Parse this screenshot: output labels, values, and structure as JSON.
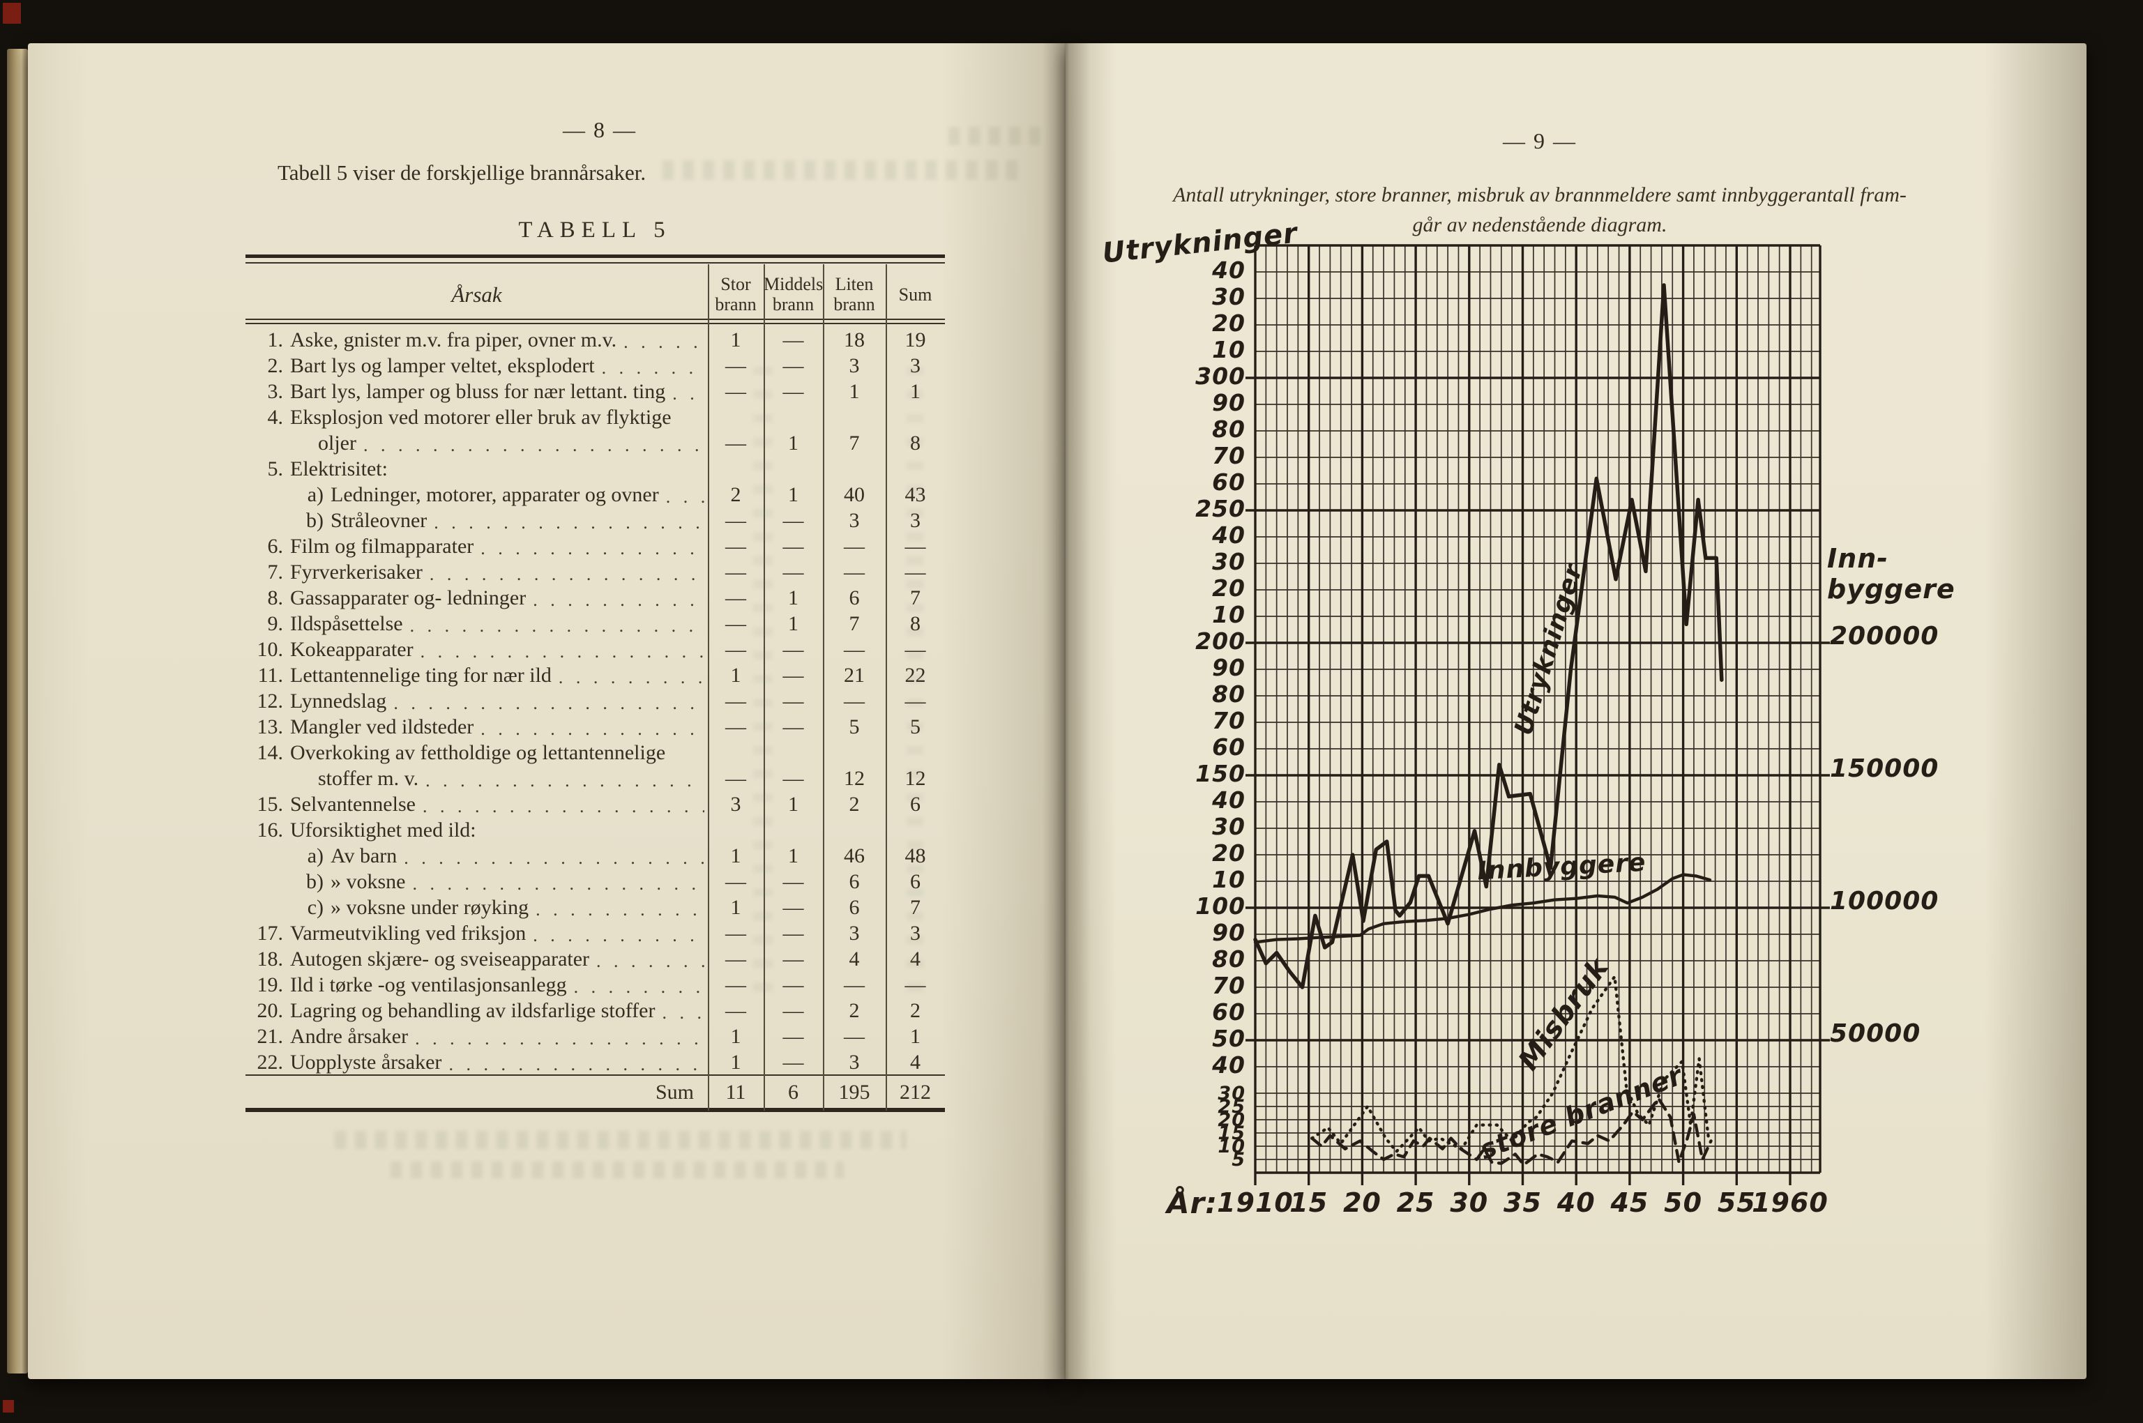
{
  "left_page": {
    "page_number": "— 8 —",
    "intro": "Tabell 5 viser de forskjellige brannårsaker.",
    "table_title": "TABELL 5",
    "table": {
      "col_headers": [
        {
          "l1": "Årsak",
          "l2": ""
        },
        {
          "l1": "Stor",
          "l2": "brann"
        },
        {
          "l1": "Middels",
          "l2": "brann"
        },
        {
          "l1": "Liten",
          "l2": "brann"
        },
        {
          "l1": "Sum",
          "l2": ""
        }
      ],
      "rows": [
        {
          "n": "1.",
          "t": "Aske, gnister m.v. fra piper, ovner m.v.",
          "leader": true,
          "v": [
            "1",
            "—",
            "18",
            "19"
          ]
        },
        {
          "n": "2.",
          "t": "Bart lys og lamper veltet, eksplodert",
          "leader": true,
          "v": [
            "—",
            "—",
            "3",
            "3"
          ]
        },
        {
          "n": "3.",
          "t": "Bart lys, lamper og bluss for nær lettant. ting",
          "leader": true,
          "v": [
            "—",
            "—",
            "1",
            "1"
          ]
        },
        {
          "n": "4.",
          "t": "Eksplosjon ved motorer eller bruk av flyktige",
          "leader": false,
          "v": null
        },
        {
          "n": "",
          "t": "oljer",
          "cont": true,
          "leader": true,
          "v": [
            "—",
            "1",
            "7",
            "8"
          ]
        },
        {
          "n": "5.",
          "t": "Elektrisitet:",
          "leader": false,
          "v": null
        },
        {
          "n": "a)",
          "t": "Ledninger, motorer, apparater og ovner",
          "sub": true,
          "leader": true,
          "v": [
            "2",
            "1",
            "40",
            "43"
          ]
        },
        {
          "n": "b)",
          "t": "Stråleovner",
          "sub": true,
          "leader": true,
          "v": [
            "—",
            "—",
            "3",
            "3"
          ]
        },
        {
          "n": "6.",
          "t": "Film og filmapparater",
          "leader": true,
          "v": [
            "—",
            "—",
            "—",
            "—"
          ]
        },
        {
          "n": "7.",
          "t": "Fyrverkerisaker",
          "leader": true,
          "v": [
            "—",
            "—",
            "—",
            "—"
          ]
        },
        {
          "n": "8.",
          "t": "Gassapparater og- ledninger",
          "leader": true,
          "v": [
            "—",
            "1",
            "6",
            "7"
          ]
        },
        {
          "n": "9.",
          "t": "Ildspåsettelse",
          "leader": true,
          "v": [
            "—",
            "1",
            "7",
            "8"
          ]
        },
        {
          "n": "10.",
          "t": "Kokeapparater",
          "leader": true,
          "v": [
            "—",
            "—",
            "—",
            "—"
          ]
        },
        {
          "n": "11.",
          "t": "Lettantennelige ting for nær ild",
          "leader": true,
          "v": [
            "1",
            "—",
            "21",
            "22"
          ]
        },
        {
          "n": "12.",
          "t": "Lynnedslag",
          "leader": true,
          "v": [
            "—",
            "—",
            "—",
            "—"
          ]
        },
        {
          "n": "13.",
          "t": "Mangler ved ildsteder",
          "leader": true,
          "v": [
            "—",
            "—",
            "5",
            "5"
          ]
        },
        {
          "n": "14.",
          "t": "Overkoking av fettholdige og lettantennelige",
          "leader": false,
          "v": null
        },
        {
          "n": "",
          "t": "stoffer m. v.",
          "cont": true,
          "leader": true,
          "v": [
            "—",
            "—",
            "12",
            "12"
          ]
        },
        {
          "n": "15.",
          "t": "Selvantennelse",
          "leader": true,
          "v": [
            "3",
            "1",
            "2",
            "6"
          ]
        },
        {
          "n": "16.",
          "t": "Uforsiktighet med ild:",
          "leader": false,
          "v": null
        },
        {
          "n": "a)",
          "t": "Av barn",
          "sub": true,
          "leader": true,
          "v": [
            "1",
            "1",
            "46",
            "48"
          ]
        },
        {
          "n": "b)",
          "t": "»  voksne",
          "sub": true,
          "leader": true,
          "v": [
            "—",
            "—",
            "6",
            "6"
          ]
        },
        {
          "n": "c)",
          "t": "»  voksne under røyking",
          "sub": true,
          "leader": true,
          "v": [
            "1",
            "—",
            "6",
            "7"
          ]
        },
        {
          "n": "17.",
          "t": "Varmeutvikling ved friksjon",
          "leader": true,
          "v": [
            "—",
            "—",
            "3",
            "3"
          ]
        },
        {
          "n": "18.",
          "t": "Autogen skjære- og sveiseapparater",
          "leader": true,
          "v": [
            "—",
            "—",
            "4",
            "4"
          ]
        },
        {
          "n": "19.",
          "t": "Ild i tørke -og ventilasjonsanlegg",
          "leader": true,
          "v": [
            "—",
            "—",
            "—",
            "—"
          ]
        },
        {
          "n": "20.",
          "t": "Lagring og behandling av ildsfarlige stoffer",
          "leader": true,
          "v": [
            "—",
            "—",
            "2",
            "2"
          ]
        },
        {
          "n": "21.",
          "t": "Andre årsaker",
          "leader": true,
          "v": [
            "1",
            "—",
            "—",
            "1"
          ]
        },
        {
          "n": "22.",
          "t": "Uopplyste årsaker",
          "leader": true,
          "v": [
            "1",
            "—",
            "3",
            "4"
          ]
        }
      ],
      "sum_row": {
        "label": "Sum",
        "v": [
          "11",
          "6",
          "195",
          "212"
        ]
      }
    }
  },
  "right_page": {
    "page_number": "— 9 —",
    "caption_line1": "Antall utrykninger, store branner, misbruk av brannmeldere samt innbyggerantall fram-",
    "caption_line2": "går av nedenstående diagram."
  },
  "chart_data": {
    "type": "line",
    "title": "Antall utrykninger, store branner, misbruk av brannmeldere samt innbyggerantall 1910–1960",
    "x_axis": {
      "label": "År:",
      "tick_years": [
        1910,
        1915,
        1920,
        1925,
        1930,
        1935,
        1940,
        1945,
        1950,
        1955,
        1960
      ],
      "tick_texts": [
        "1910",
        "15",
        "20",
        "25",
        "30",
        "35",
        "40",
        "45",
        "50",
        "55",
        "1960"
      ],
      "range": [
        1910,
        1963
      ]
    },
    "y_axis_left": {
      "label": "Utrykninger",
      "range": [
        0,
        350
      ],
      "ticks": [
        [
          340,
          "40"
        ],
        [
          330,
          "30"
        ],
        [
          320,
          "20"
        ],
        [
          310,
          "10"
        ],
        [
          300,
          "300"
        ],
        [
          290,
          "90"
        ],
        [
          280,
          "80"
        ],
        [
          270,
          "70"
        ],
        [
          260,
          "60"
        ],
        [
          250,
          "250"
        ],
        [
          240,
          "40"
        ],
        [
          230,
          "30"
        ],
        [
          220,
          "20"
        ],
        [
          210,
          "10"
        ],
        [
          200,
          "200"
        ],
        [
          190,
          "90"
        ],
        [
          180,
          "80"
        ],
        [
          170,
          "70"
        ],
        [
          160,
          "60"
        ],
        [
          150,
          "150"
        ],
        [
          140,
          "40"
        ],
        [
          130,
          "30"
        ],
        [
          120,
          "20"
        ],
        [
          110,
          "10"
        ],
        [
          100,
          "100"
        ],
        [
          90,
          "90"
        ],
        [
          80,
          "80"
        ],
        [
          70,
          "70"
        ],
        [
          60,
          "60"
        ],
        [
          50,
          "50"
        ],
        [
          40,
          "40"
        ],
        [
          30,
          "30"
        ],
        [
          25,
          "25"
        ],
        [
          20,
          "20"
        ],
        [
          15,
          "15"
        ],
        [
          10,
          "10"
        ],
        [
          5,
          "5"
        ]
      ]
    },
    "y_axis_right": {
      "label_line1": "Inn-",
      "label_line2": "byggere",
      "ticks": [
        [
          200000,
          "200000"
        ],
        [
          150000,
          "150000"
        ],
        [
          100000,
          "100000"
        ],
        [
          50000,
          "50000"
        ]
      ]
    },
    "grid": {
      "on": true,
      "minor_step": 10,
      "major_step": 50,
      "extra_fine_below": 30,
      "minor_step_below": 5
    },
    "series": [
      {
        "name": "Utrykninger",
        "label_on_chart": "Utrykninger",
        "style": "solid",
        "points": [
          [
            1910,
            88
          ],
          [
            1911,
            79
          ],
          [
            1912,
            83
          ],
          [
            1913.2,
            76
          ],
          [
            1914.4,
            70
          ],
          [
            1915.6,
            97
          ],
          [
            1916.5,
            85
          ],
          [
            1917.2,
            87
          ],
          [
            1919.1,
            120
          ],
          [
            1920.1,
            95
          ],
          [
            1921.3,
            122
          ],
          [
            1922.3,
            125
          ],
          [
            1923.1,
            99
          ],
          [
            1923.5,
            97
          ],
          [
            1924.5,
            102
          ],
          [
            1925.3,
            112
          ],
          [
            1926.2,
            112
          ],
          [
            1928,
            94
          ],
          [
            1930.5,
            129
          ],
          [
            1931.6,
            108
          ],
          [
            1932.8,
            154
          ],
          [
            1933.7,
            142
          ],
          [
            1935.7,
            143
          ],
          [
            1937.6,
            115
          ],
          [
            1939.5,
            190
          ],
          [
            1941.9,
            262
          ],
          [
            1943.7,
            224
          ],
          [
            1945.2,
            254
          ],
          [
            1946.5,
            227
          ],
          [
            1948.2,
            335
          ],
          [
            1950.3,
            207
          ],
          [
            1951.4,
            254
          ],
          [
            1952.1,
            232
          ],
          [
            1953.1,
            232
          ],
          [
            1953.6,
            186
          ]
        ]
      },
      {
        "name": "Innbyggere",
        "label_on_chart": "Innbyggere",
        "style": "solid",
        "unit": "persons",
        "points": [
          [
            1910,
            87000
          ],
          [
            1912,
            88000
          ],
          [
            1914,
            88300
          ],
          [
            1916,
            88800
          ],
          [
            1918,
            89200
          ],
          [
            1919.8,
            89600
          ],
          [
            1920.6,
            92000
          ],
          [
            1922,
            94000
          ],
          [
            1924,
            94800
          ],
          [
            1926,
            95200
          ],
          [
            1928,
            96000
          ],
          [
            1930,
            97500
          ],
          [
            1932,
            99500
          ],
          [
            1934,
            101000
          ],
          [
            1936,
            101800
          ],
          [
            1938,
            103000
          ],
          [
            1940,
            103500
          ],
          [
            1942,
            104500
          ],
          [
            1943.6,
            104000
          ],
          [
            1944.8,
            101800
          ],
          [
            1946.2,
            104000
          ],
          [
            1947.6,
            107000
          ],
          [
            1949,
            111000
          ],
          [
            1950,
            112500
          ],
          [
            1951.2,
            112000
          ],
          [
            1952.5,
            110500
          ]
        ]
      },
      {
        "name": "Misbruk av brannmeldere",
        "label_on_chart": "Misbruk",
        "style": "dotted",
        "points": [
          [
            1915.3,
            13
          ],
          [
            1916.8,
            17
          ],
          [
            1918,
            11
          ],
          [
            1920.5,
            25
          ],
          [
            1922.2,
            13
          ],
          [
            1923.2,
            8
          ],
          [
            1925.3,
            17
          ],
          [
            1926.2,
            12
          ],
          [
            1927.3,
            13
          ],
          [
            1928.2,
            11
          ],
          [
            1929.3,
            9
          ],
          [
            1930.7,
            18
          ],
          [
            1932.6,
            18
          ],
          [
            1934,
            12
          ],
          [
            1935.5,
            19
          ],
          [
            1936.3,
            21
          ],
          [
            1937.8,
            30
          ],
          [
            1939.5,
            45
          ],
          [
            1941.5,
            62
          ],
          [
            1943.6,
            74
          ],
          [
            1944.7,
            32
          ],
          [
            1945.8,
            22
          ],
          [
            1946.8,
            18
          ],
          [
            1948.2,
            35
          ],
          [
            1949.9,
            42
          ],
          [
            1950.7,
            18
          ],
          [
            1951.5,
            43
          ],
          [
            1952.4,
            12
          ]
        ]
      },
      {
        "name": "Store branner",
        "label_on_chart": "store branner",
        "style": "dashed",
        "points": [
          [
            1915.3,
            13
          ],
          [
            1916.2,
            10
          ],
          [
            1917,
            14
          ],
          [
            1918.4,
            9
          ],
          [
            1919.8,
            12
          ],
          [
            1921,
            8
          ],
          [
            1922,
            5
          ],
          [
            1923,
            7
          ],
          [
            1923.9,
            6
          ],
          [
            1924.8,
            12
          ],
          [
            1925.7,
            10
          ],
          [
            1926.3,
            13
          ],
          [
            1927.5,
            9
          ],
          [
            1928.3,
            13
          ],
          [
            1929.2,
            9
          ],
          [
            1930.7,
            5
          ],
          [
            1931.4,
            9
          ],
          [
            1932.1,
            4
          ],
          [
            1933,
            3.5
          ],
          [
            1934.3,
            7
          ],
          [
            1935.1,
            3
          ],
          [
            1936.4,
            7
          ],
          [
            1937.3,
            6
          ],
          [
            1938.3,
            4
          ],
          [
            1939.6,
            12
          ],
          [
            1941.1,
            11
          ],
          [
            1942,
            14
          ],
          [
            1943.1,
            12
          ],
          [
            1944.4,
            18
          ],
          [
            1945.3,
            23
          ],
          [
            1946.2,
            20
          ],
          [
            1947.7,
            28
          ],
          [
            1948.8,
            21
          ],
          [
            1949.6,
            4
          ],
          [
            1950.4,
            13
          ],
          [
            1951,
            22
          ],
          [
            1951.8,
            5
          ],
          [
            1952.6,
            12
          ]
        ]
      }
    ]
  }
}
